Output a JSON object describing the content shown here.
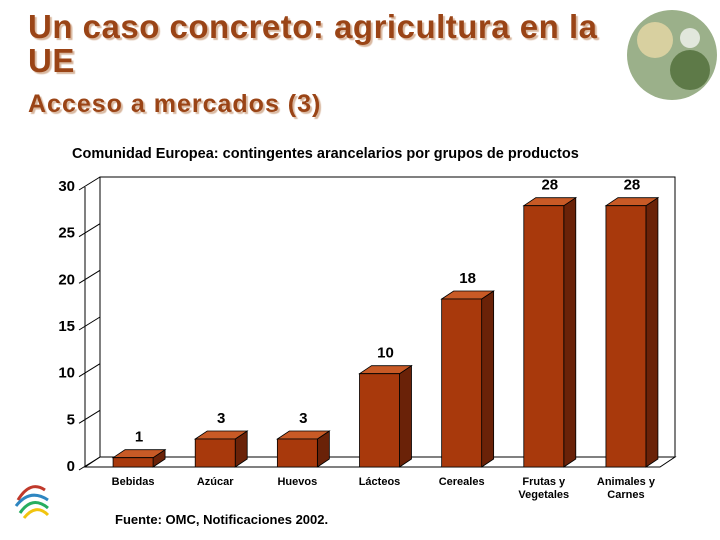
{
  "header": {
    "title": "Un caso concreto: agricultura en la UE",
    "subtitle": "Acceso a mercados (3)"
  },
  "chart_data": {
    "type": "bar3d",
    "title": "Comunidad Europea: contingentes arancelarios por grupos de productos",
    "categories": [
      "Bebidas",
      "Azúcar",
      "Huevos",
      "Lácteos",
      "Cereales",
      "Frutas y Vegetales",
      "Animales y Carnes"
    ],
    "values": [
      1,
      3,
      3,
      10,
      18,
      28,
      28
    ],
    "color": "#a8390c",
    "ylim": [
      0,
      30
    ],
    "yticks": [
      0,
      5,
      10,
      15,
      20,
      25,
      30
    ],
    "grid": true
  },
  "footer": {
    "source": "Fuente: OMC, Notificaciones 2002."
  }
}
